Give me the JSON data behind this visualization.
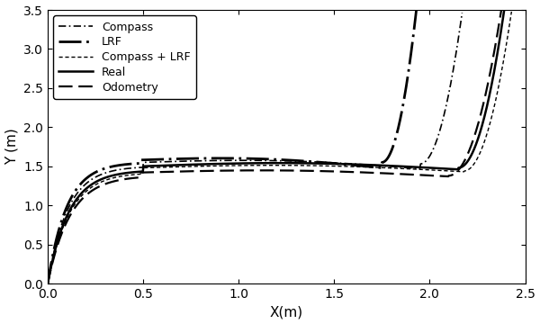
{
  "title": "",
  "xlabel": "X(m)",
  "ylabel": "Y (m)",
  "xlim": [
    0,
    2.5
  ],
  "ylim": [
    0,
    3.5
  ],
  "xticks": [
    0,
    0.5,
    1.0,
    1.5,
    2.0,
    2.5
  ],
  "yticks": [
    0,
    0.5,
    1.0,
    1.5,
    2.0,
    2.5,
    3.0,
    3.5
  ],
  "color": "black",
  "legend_entries": [
    "Compass",
    "LRF",
    "Compass + LRF",
    "Real",
    "Odometry"
  ],
  "figsize": [
    6.0,
    3.6
  ],
  "dpi": 100
}
